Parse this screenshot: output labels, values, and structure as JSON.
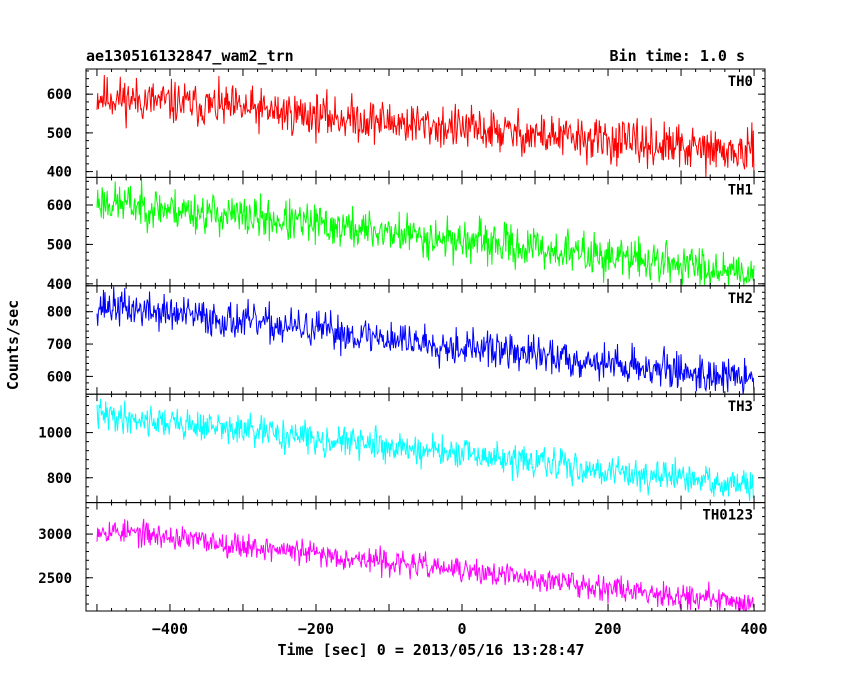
{
  "header": {
    "title": "ae130516132847_wam2_trn",
    "bin_time": "Bin time: 1.0 s"
  },
  "chart_data": {
    "type": "line",
    "xlabel": "Time [sec] 0 = 2013/05/16 13:28:47",
    "ylabel": "Counts/sec",
    "xlim": [
      -515,
      415
    ],
    "x_ticks": [
      -400,
      -200,
      0,
      200,
      400
    ],
    "x_range": [
      -500,
      400
    ],
    "bin_time_s": 1.0,
    "panels": [
      {
        "name": "TH0",
        "color": "#ff0000",
        "ylim": [
          385,
          665
        ],
        "y_ticks": [
          400,
          500,
          600
        ],
        "trend": {
          "x": [
            -500,
            400
          ],
          "y": [
            595,
            445
          ]
        },
        "noise_amplitude": 28,
        "seed": 11
      },
      {
        "name": "TH1",
        "color": "#00ff00",
        "ylim": [
          395,
          670
        ],
        "y_ticks": [
          400,
          500,
          600
        ],
        "trend": {
          "x": [
            -500,
            400
          ],
          "y": [
            610,
            430
          ]
        },
        "noise_amplitude": 26,
        "seed": 23
      },
      {
        "name": "TH2",
        "color": "#0000ff",
        "ylim": [
          545,
          880
        ],
        "y_ticks": [
          600,
          700,
          800
        ],
        "trend": {
          "x": [
            -500,
            400
          ],
          "y": [
            820,
            590
          ]
        },
        "noise_amplitude": 28,
        "seed": 37
      },
      {
        "name": "TH3",
        "color": "#00ffff",
        "ylim": [
          690,
          1170
        ],
        "y_ticks": [
          800,
          1000
        ],
        "trend": {
          "x": [
            -500,
            400
          ],
          "y": [
            1080,
            760
          ]
        },
        "noise_amplitude": 34,
        "seed": 41
      },
      {
        "name": "TH0123",
        "color": "#ff00ff",
        "ylim": [
          2120,
          3360
        ],
        "y_ticks": [
          2500,
          3000
        ],
        "trend": {
          "x": [
            -500,
            400
          ],
          "y": [
            3060,
            2200
          ]
        },
        "noise_amplitude": 70,
        "seed": 53
      }
    ]
  }
}
